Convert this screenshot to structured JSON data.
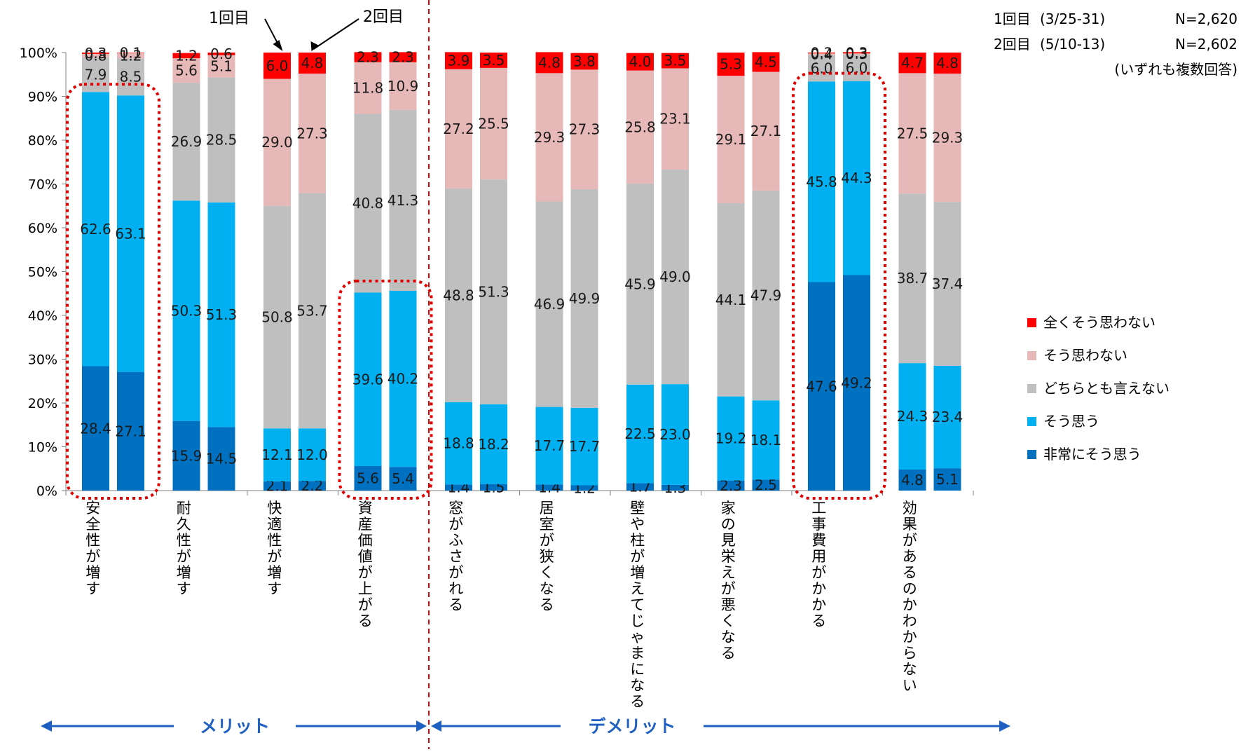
{
  "chart_data": {
    "type": "bar",
    "stacked": true,
    "percent": true,
    "ylim": [
      0,
      100
    ],
    "yticks": [
      "0%",
      "10%",
      "20%",
      "30%",
      "40%",
      "50%",
      "60%",
      "70%",
      "80%",
      "90%",
      "100%"
    ],
    "categories": [
      "安全性が増す",
      "耐久性が増す",
      "快適性が増す",
      "資産価値が上がる",
      "窓がふさがれる",
      "居室が狭くなる",
      "壁や柱が増えてじゃまになる",
      "家の見栄えが悪くなる",
      "工事費用がかかる",
      "効果があるのかわからない"
    ],
    "rounds": [
      "1回目",
      "2回目"
    ],
    "series": [
      {
        "name": "非常にそう思う",
        "color": "#0070c0",
        "round1": [
          28.4,
          15.9,
          2.1,
          5.6,
          1.4,
          1.4,
          1.7,
          2.3,
          47.6,
          4.8
        ],
        "round2": [
          27.1,
          14.5,
          2.2,
          5.4,
          1.5,
          1.2,
          1.3,
          2.5,
          49.2,
          5.1
        ]
      },
      {
        "name": "そう思う",
        "color": "#00b0f0",
        "round1": [
          62.6,
          50.3,
          12.1,
          39.6,
          18.8,
          17.7,
          22.5,
          19.2,
          45.8,
          24.3
        ],
        "round2": [
          63.1,
          51.3,
          12.0,
          40.2,
          18.2,
          17.7,
          23.0,
          18.1,
          44.3,
          23.4
        ]
      },
      {
        "name": "どちらとも言えない",
        "color": "#bfbfbf",
        "round1": [
          7.9,
          26.9,
          50.8,
          40.8,
          48.8,
          46.9,
          45.9,
          44.1,
          6.0,
          38.7
        ],
        "round2": [
          8.5,
          28.5,
          53.7,
          41.3,
          51.3,
          49.9,
          49.0,
          47.9,
          6.0,
          37.4
        ]
      },
      {
        "name": "そう思わない",
        "color": "#e6b8b7",
        "round1": [
          0.8,
          5.6,
          29.0,
          11.8,
          27.2,
          29.3,
          25.8,
          29.1,
          0.4,
          27.5
        ],
        "round2": [
          1.2,
          5.1,
          27.3,
          10.9,
          25.5,
          27.3,
          23.1,
          27.1,
          0.3,
          29.3
        ]
      },
      {
        "name": "全くそう思わない",
        "color": "#ff0000",
        "round1": [
          0.3,
          1.2,
          6.0,
          2.3,
          3.9,
          4.8,
          4.0,
          5.3,
          0.2,
          4.7
        ],
        "round2": [
          0.1,
          0.6,
          4.8,
          2.3,
          3.5,
          3.8,
          3.5,
          4.5,
          0.3,
          4.8
        ]
      }
    ],
    "legend_order": [
      "全くそう思わない",
      "そう思わない",
      "どちらとも言えない",
      "そう思う",
      "非常にそう思う"
    ],
    "legend_position": "right",
    "grid": false,
    "highlighted_categories": [
      "安全性が増す",
      "資産価値が上がる",
      "工事費用がかかる"
    ],
    "highlighted_segments": [
      {
        "category": "資産価値が上がる",
        "segments": [
          "非常にそう思う",
          "そう思う"
        ]
      }
    ],
    "survey_info": [
      {
        "round": "1回目",
        "dates": "(3/25-31)",
        "n": "N=2,620"
      },
      {
        "round": "2回目",
        "dates": "(5/10-13)",
        "n": "N=2,602"
      },
      {
        "note": "(いずれも複数回答)"
      }
    ],
    "callouts": {
      "first": "1回目",
      "second": "2回目"
    },
    "groups": [
      {
        "label": "メリット",
        "categories": 4
      },
      {
        "label": "デメリット",
        "categories": 6
      }
    ],
    "colors": {
      "divider": "#e00000",
      "highlight": "#e00000",
      "arrow": "#1f5fbf"
    }
  }
}
